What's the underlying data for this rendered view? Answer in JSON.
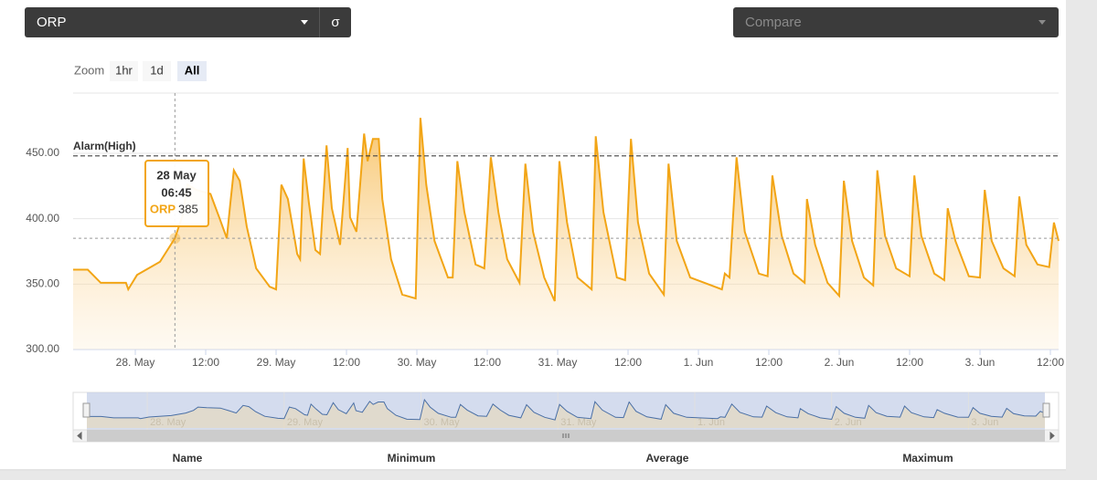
{
  "controls": {
    "parameter": "ORP",
    "sigma": "σ",
    "compare": "Compare",
    "zoom_label": "Zoom",
    "zoom_buttons": [
      "1hr",
      "1d",
      "All"
    ],
    "zoom_selected": 2
  },
  "chart_data": {
    "type": "line",
    "x": [
      -10.6,
      -8.1,
      -5.9,
      -1.6,
      -1.2,
      0.3,
      4.2,
      6.75,
      8.1,
      8.9,
      10.4,
      12.8,
      14.3,
      15.6,
      16.2,
      16.8,
      17.8,
      19.0,
      20.6,
      22.9,
      24.0,
      24.9,
      26.0,
      27.6,
      28.1,
      28.7,
      29.6,
      30.7,
      31.5,
      32.6,
      33.5,
      34.9,
      36.2,
      36.6,
      37.7,
      39.0,
      39.6,
      40.5,
      41.5,
      42.1,
      43.6,
      45.5,
      47.8,
      48.6,
      49.6,
      51.0,
      53.3,
      54.1,
      54.9,
      56.1,
      58.0,
      59.5,
      60.6,
      61.9,
      63.4,
      65.5,
      66.5,
      67.8,
      69.7,
      71.5,
      72.3,
      73.6,
      75.4,
      77.8,
      78.5,
      79.8,
      82.1,
      83.5,
      84.5,
      85.7,
      87.6,
      90.1,
      90.9,
      92.3,
      94.6,
      100.0,
      100.5,
      101.3,
      102.5,
      103.9,
      106.3,
      107.8,
      108.6,
      110.2,
      112.2,
      114.1,
      114.5,
      115.9,
      118.0,
      120.0,
      120.8,
      122.2,
      124.2,
      125.8,
      126.5,
      127.8,
      129.7,
      132.0,
      132.8,
      134.0,
      136.2,
      137.9,
      138.5,
      139.8,
      142.1,
      144.0,
      144.8,
      146.0,
      148.0,
      149.9,
      150.7,
      151.9,
      153.8,
      155.8,
      156.6,
      157.4
    ],
    "series": [
      {
        "name": "ORP",
        "color": "#f2a516",
        "values": [
          361,
          361,
          351,
          351,
          346,
          357,
          367,
          385,
          403,
          426,
          422,
          419,
          401,
          385,
          412,
          437,
          429,
          394,
          362,
          348,
          346,
          426,
          415,
          373,
          369,
          446,
          412,
          376,
          373,
          456,
          408,
          380,
          454,
          401,
          390,
          465,
          444,
          461,
          461,
          415,
          369,
          342,
          339,
          477,
          426,
          383,
          355,
          355,
          444,
          405,
          365,
          362,
          447,
          405,
          369,
          351,
          442,
          390,
          355,
          337,
          444,
          397,
          355,
          346,
          463,
          405,
          355,
          353,
          461,
          397,
          358,
          342,
          442,
          383,
          355,
          346,
          358,
          355,
          447,
          390,
          358,
          356,
          433,
          387,
          358,
          351,
          415,
          380,
          351,
          341,
          429,
          383,
          355,
          349,
          437,
          387,
          362,
          356,
          433,
          387,
          358,
          353,
          408,
          383,
          356,
          355,
          422,
          383,
          362,
          356,
          417,
          380,
          365,
          363,
          397,
          383
        ]
      }
    ],
    "xlim": [
      -10.6,
      157.4
    ],
    "xticks": [
      {
        "value": 0,
        "label": "28. May"
      },
      {
        "value": 12,
        "label": "12:00"
      },
      {
        "value": 24,
        "label": "29. May"
      },
      {
        "value": 36,
        "label": "12:00"
      },
      {
        "value": 48,
        "label": "30. May"
      },
      {
        "value": 60,
        "label": "12:00"
      },
      {
        "value": 72,
        "label": "31. May"
      },
      {
        "value": 84,
        "label": "12:00"
      },
      {
        "value": 96,
        "label": "1. Jun"
      },
      {
        "value": 108,
        "label": "12:00"
      },
      {
        "value": 120,
        "label": "2. Jun"
      },
      {
        "value": 132,
        "label": "12:00"
      },
      {
        "value": 144,
        "label": "3. Jun"
      },
      {
        "value": 156,
        "label": "12:00"
      }
    ],
    "ylim": [
      300,
      496
    ],
    "yticks": [
      {
        "value": 300,
        "label": "300.00"
      },
      {
        "value": 350,
        "label": "350.00"
      },
      {
        "value": 400,
        "label": "400.00"
      },
      {
        "value": 450,
        "label": "450.00"
      }
    ],
    "grid": true,
    "alarm": {
      "label": "Alarm(High)",
      "value": 448
    },
    "tooltip": {
      "date": "28 May",
      "time": "06:45",
      "index": 7
    }
  },
  "table": {
    "headers": [
      "Name",
      "Minimum",
      "Average",
      "Maximum"
    ]
  }
}
